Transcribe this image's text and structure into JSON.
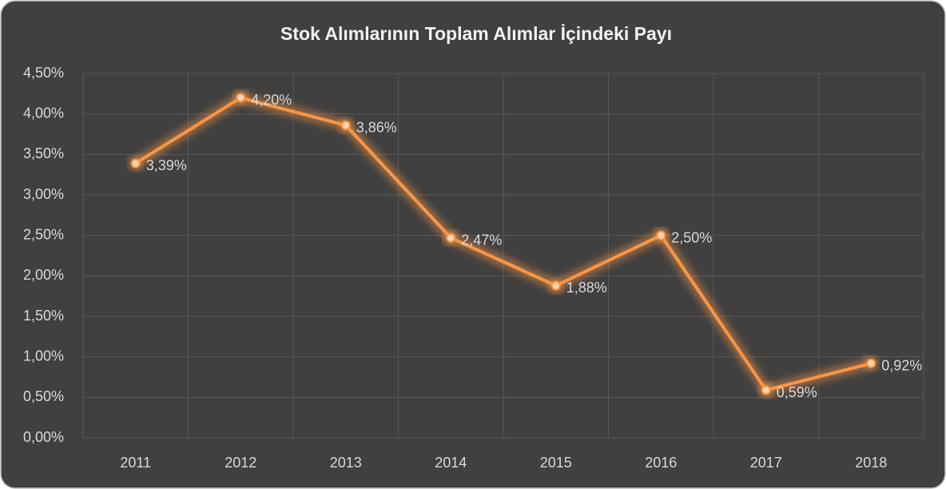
{
  "chart_data": {
    "type": "line",
    "title": "Stok Alımlarının Toplam Alımlar İçindeki Payı",
    "categories": [
      "2011",
      "2012",
      "2013",
      "2014",
      "2015",
      "2016",
      "2017",
      "2018"
    ],
    "values": [
      3.39,
      4.2,
      3.86,
      2.47,
      1.88,
      2.5,
      0.59,
      0.92
    ],
    "value_labels": [
      "3,39%",
      "4,20%",
      "3,86%",
      "2,47%",
      "1,88%",
      "2,50%",
      "0,59%",
      "0,92%"
    ],
    "color": "#f79646",
    "ylim": [
      0,
      4.5
    ],
    "yticks": [
      {
        "value": 0,
        "label": "0,00%"
      },
      {
        "value": 0.5,
        "label": "0,50%"
      },
      {
        "value": 1,
        "label": "1,00%"
      },
      {
        "value": 1.5,
        "label": "1,50%"
      },
      {
        "value": 2,
        "label": "2,00%"
      },
      {
        "value": 2.5,
        "label": "2,50%"
      },
      {
        "value": 3,
        "label": "3,00%"
      },
      {
        "value": 3.5,
        "label": "3,50%"
      },
      {
        "value": 4,
        "label": "4,00%"
      },
      {
        "value": 4.5,
        "label": "4,50%"
      }
    ],
    "grid": true
  }
}
